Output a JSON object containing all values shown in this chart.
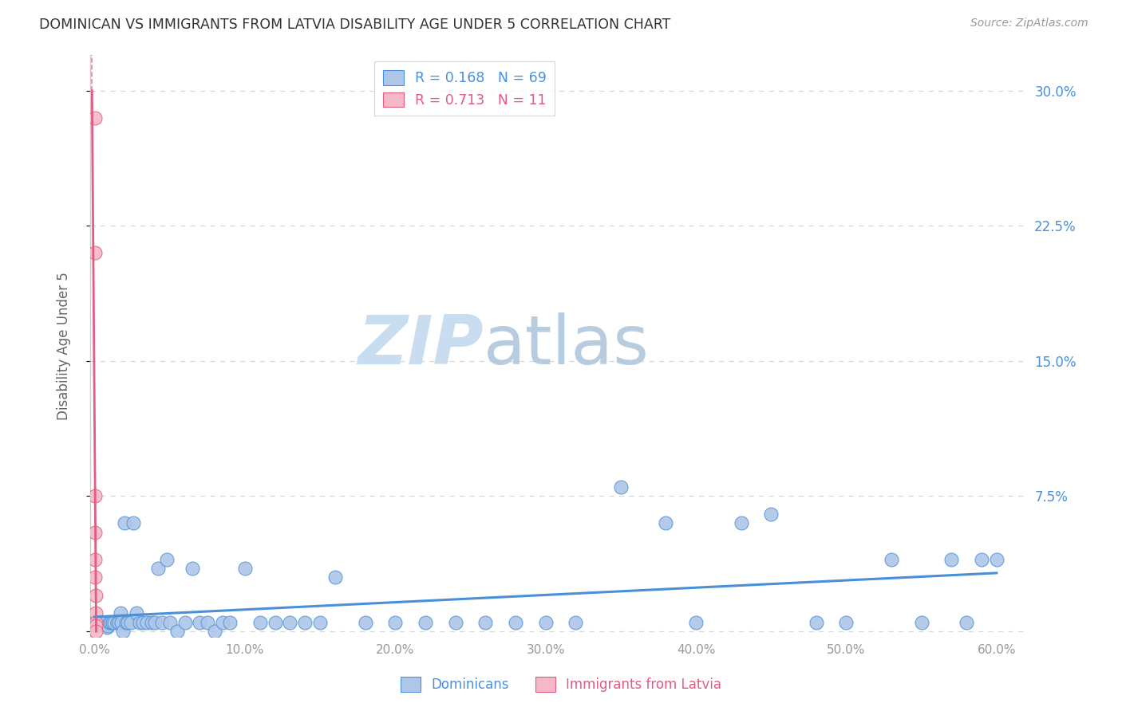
{
  "title": "DOMINICAN VS IMMIGRANTS FROM LATVIA DISABILITY AGE UNDER 5 CORRELATION CHART",
  "source": "Source: ZipAtlas.com",
  "ylabel": "Disability Age Under 5",
  "xlabel": "",
  "xlim": [
    -0.003,
    0.62
  ],
  "ylim": [
    -0.003,
    0.32
  ],
  "xticks": [
    0.0,
    0.1,
    0.2,
    0.3,
    0.4,
    0.5,
    0.6
  ],
  "yticks": [
    0.0,
    0.075,
    0.15,
    0.225,
    0.3
  ],
  "xticklabels": [
    "0.0%",
    "10.0%",
    "20.0%",
    "30.0%",
    "40.0%",
    "50.0%",
    "60.0%"
  ],
  "yticklabels_right": [
    "",
    "7.5%",
    "15.0%",
    "22.5%",
    "30.0%"
  ],
  "blue_color": "#aec6e8",
  "pink_color": "#f5b8c8",
  "blue_line_color": "#4a90d9",
  "pink_line_color": "#e05c80",
  "blue_r": 0.168,
  "blue_n": 69,
  "pink_r": 0.713,
  "pink_n": 11,
  "dominican_x": [
    0.001,
    0.002,
    0.003,
    0.004,
    0.005,
    0.006,
    0.007,
    0.008,
    0.009,
    0.01,
    0.011,
    0.012,
    0.013,
    0.015,
    0.016,
    0.017,
    0.018,
    0.019,
    0.02,
    0.021,
    0.022,
    0.024,
    0.026,
    0.028,
    0.03,
    0.032,
    0.035,
    0.038,
    0.04,
    0.042,
    0.045,
    0.048,
    0.05,
    0.055,
    0.06,
    0.065,
    0.07,
    0.075,
    0.08,
    0.085,
    0.09,
    0.1,
    0.11,
    0.12,
    0.13,
    0.14,
    0.15,
    0.16,
    0.18,
    0.2,
    0.22,
    0.24,
    0.26,
    0.28,
    0.3,
    0.32,
    0.35,
    0.38,
    0.4,
    0.43,
    0.45,
    0.48,
    0.5,
    0.53,
    0.55,
    0.57,
    0.58,
    0.59,
    0.6
  ],
  "dominican_y": [
    0.005,
    0.005,
    0.005,
    0.005,
    0.005,
    0.005,
    0.005,
    0.002,
    0.003,
    0.005,
    0.005,
    0.005,
    0.005,
    0.005,
    0.005,
    0.01,
    0.005,
    0.0,
    0.06,
    0.005,
    0.005,
    0.005,
    0.06,
    0.01,
    0.005,
    0.005,
    0.005,
    0.005,
    0.005,
    0.035,
    0.005,
    0.04,
    0.005,
    0.0,
    0.005,
    0.035,
    0.005,
    0.005,
    0.0,
    0.005,
    0.005,
    0.035,
    0.005,
    0.005,
    0.005,
    0.005,
    0.005,
    0.03,
    0.005,
    0.005,
    0.005,
    0.005,
    0.005,
    0.005,
    0.005,
    0.005,
    0.08,
    0.06,
    0.005,
    0.06,
    0.065,
    0.005,
    0.005,
    0.04,
    0.005,
    0.04,
    0.005,
    0.04,
    0.04
  ],
  "latvia_x": [
    0.0,
    0.0,
    0.0,
    0.0,
    0.0,
    0.0,
    0.001,
    0.001,
    0.001,
    0.001,
    0.001
  ],
  "latvia_y": [
    0.285,
    0.21,
    0.075,
    0.055,
    0.04,
    0.03,
    0.02,
    0.01,
    0.005,
    0.003,
    0.0
  ],
  "watermark_zip": "ZIP",
  "watermark_atlas": "atlas",
  "background_color": "#ffffff",
  "grid_color": "#d8d8d8"
}
